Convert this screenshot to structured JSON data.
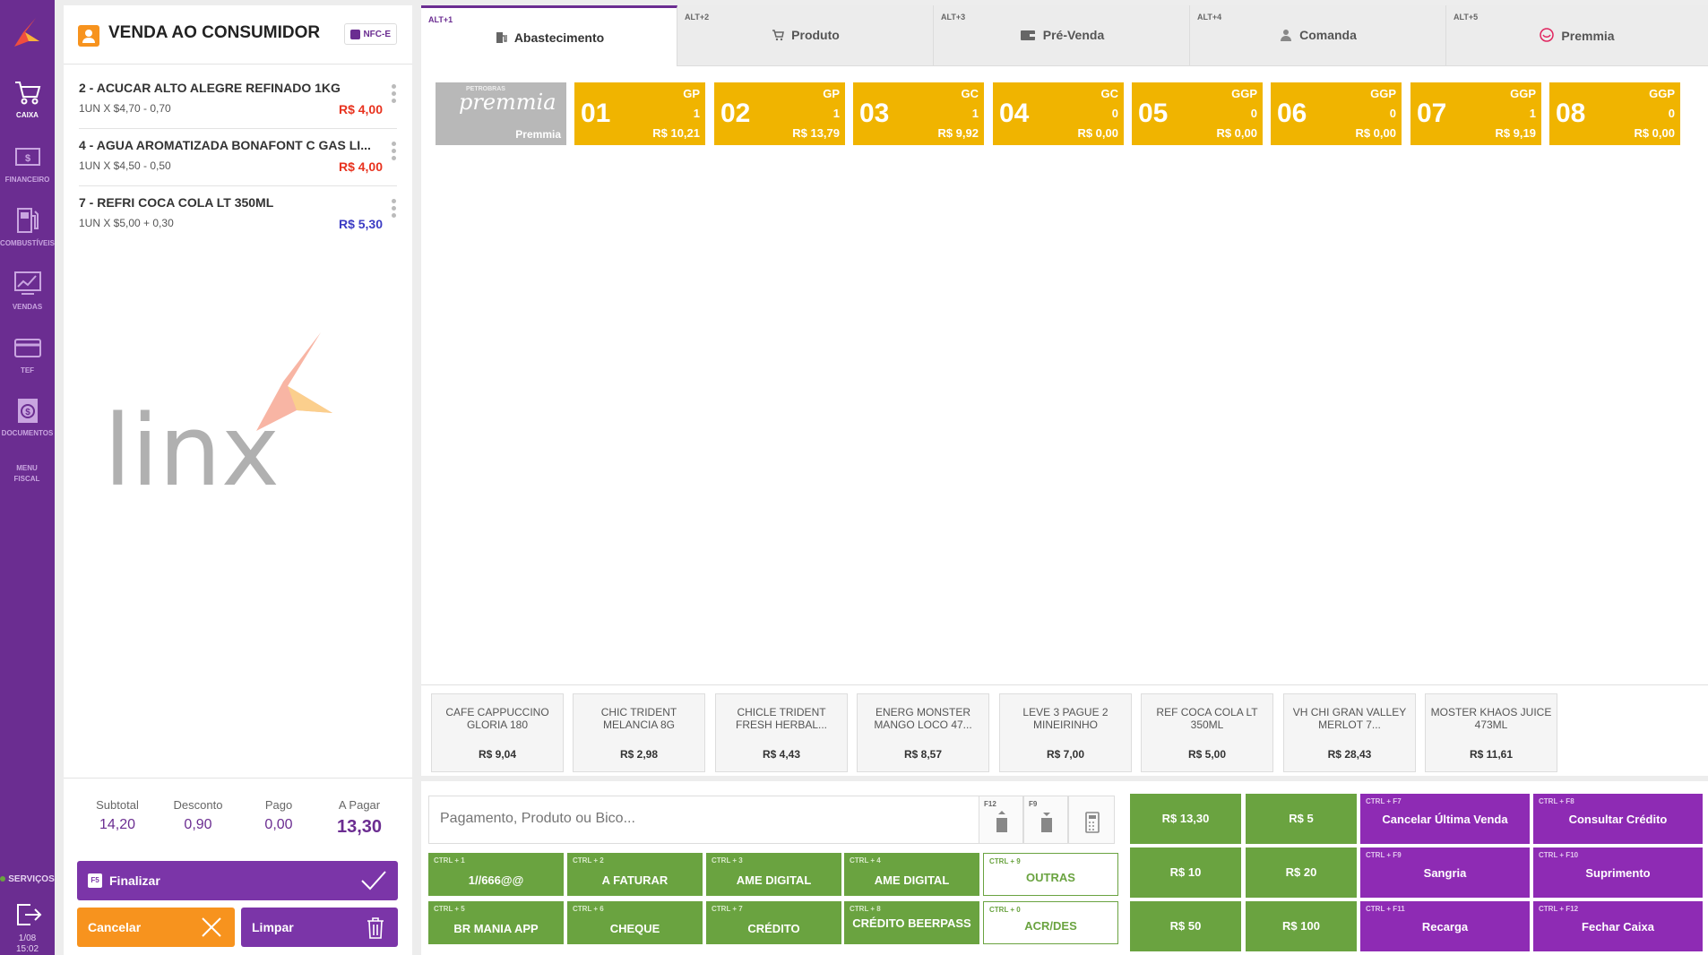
{
  "nav": {
    "items": [
      {
        "label": "CAIXA",
        "icon": "cart-icon"
      },
      {
        "label": "FINANCEIRO",
        "icon": "money-icon"
      },
      {
        "label": "COMBUSTÍVEIS",
        "icon": "fuel-pump-icon"
      },
      {
        "label": "VENDAS",
        "icon": "chart-line-icon"
      },
      {
        "label": "TEF",
        "icon": "credit-card-icon"
      },
      {
        "label": "DOCUMENTOS",
        "icon": "document-dollar-icon"
      },
      {
        "label": "MENU FISCAL",
        "icon": ""
      }
    ],
    "services_label": "SERVIÇOS",
    "date": "1/08",
    "time": "15:02"
  },
  "sale": {
    "title": "VENDA AO CONSUMIDOR",
    "doc_type": "NFC-E",
    "items": [
      {
        "name": "2 - ACUCAR ALTO ALEGRE REFINADO 1KG",
        "detail": "1UN X $4,70 - 0,70",
        "price": "R$ 4,00",
        "price_color": "#e8321e"
      },
      {
        "name": "4 - AGUA AROMATIZADA BONAFONT C GAS LI...",
        "detail": "1UN X $4,50 - 0,50",
        "price": "R$ 4,00",
        "price_color": "#e8321e"
      },
      {
        "name": "7 - REFRI COCA COLA LT 350ML",
        "detail": "1UN X $5,00 + 0,30",
        "price": "R$ 5,30",
        "price_color": "#3b3bc4"
      }
    ],
    "watermark": "linx",
    "totals": {
      "subtotal_label": "Subtotal",
      "subtotal": "14,20",
      "discount_label": "Desconto",
      "discount": "0,90",
      "paid_label": "Pago",
      "paid": "0,00",
      "due_label": "A Pagar",
      "due": "13,30"
    },
    "finalize_key": "F5",
    "finalize_label": "Finalizar",
    "cancel_label": "Cancelar",
    "clear_label": "Limpar"
  },
  "tabs": [
    {
      "shortcut": "ALT+1",
      "label": "Abastecimento",
      "icon": "fuel-icon",
      "active": true
    },
    {
      "shortcut": "ALT+2",
      "label": "Produto",
      "icon": "cart-icon"
    },
    {
      "shortcut": "ALT+3",
      "label": "Pré-Venda",
      "icon": "wallet-icon"
    },
    {
      "shortcut": "ALT+4",
      "label": "Comanda",
      "icon": "person-icon"
    },
    {
      "shortcut": "ALT+5",
      "label": "Premmia",
      "icon": "premmia-icon"
    }
  ],
  "premmia_card": {
    "brand_small": "PETROBRAS",
    "brand": "premmia",
    "label": "Premmia"
  },
  "pumps": [
    {
      "num": "01",
      "fuel": "GP",
      "qty": "1",
      "value": "R$ 10,21"
    },
    {
      "num": "02",
      "fuel": "GP",
      "qty": "1",
      "value": "R$ 13,79"
    },
    {
      "num": "03",
      "fuel": "GC",
      "qty": "1",
      "value": "R$ 9,92"
    },
    {
      "num": "04",
      "fuel": "GC",
      "qty": "0",
      "value": "R$ 0,00"
    },
    {
      "num": "05",
      "fuel": "GGP",
      "qty": "0",
      "value": "R$ 0,00"
    },
    {
      "num": "06",
      "fuel": "GGP",
      "qty": "0",
      "value": "R$ 0,00"
    },
    {
      "num": "07",
      "fuel": "GGP",
      "qty": "1",
      "value": "R$ 9,19"
    },
    {
      "num": "08",
      "fuel": "GGP",
      "qty": "0",
      "value": "R$ 0,00"
    }
  ],
  "quick_products": [
    {
      "name": "CAFE CAPPUCCINO GLORIA 180",
      "price": "R$ 9,04"
    },
    {
      "name": "CHIC TRIDENT MELANCIA 8G",
      "price": "R$ 2,98"
    },
    {
      "name": "CHICLE TRIDENT FRESH HERBAL...",
      "price": "R$ 4,43"
    },
    {
      "name": "ENERG MONSTER MANGO LOCO 47...",
      "price": "R$ 8,57"
    },
    {
      "name": "LEVE 3 PAGUE 2 MINEIRINHO",
      "price": "R$ 7,00"
    },
    {
      "name": "REF COCA COLA LT 350ML",
      "price": "R$ 5,00"
    },
    {
      "name": "VH CHI GRAN VALLEY MERLOT 7...",
      "price": "R$ 28,43"
    },
    {
      "name": "MOSTER KHAOS JUICE 473ML",
      "price": "R$ 11,61"
    }
  ],
  "payment": {
    "placeholder": "Pagamento, Produto ou Bico...",
    "icon_keys": [
      "F12",
      "F9",
      ""
    ],
    "methods": [
      {
        "key": "CTRL + 1",
        "label": "1//666@@"
      },
      {
        "key": "CTRL + 2",
        "label": "A FATURAR"
      },
      {
        "key": "CTRL + 3",
        "label": "AME DIGITAL"
      },
      {
        "key": "CTRL + 4",
        "label": "AME DIGITAL"
      },
      {
        "key": "CTRL + 9",
        "label": "OUTRAS",
        "outline": true
      },
      {
        "key": "CTRL + 5",
        "label": "BR MANIA APP"
      },
      {
        "key": "CTRL + 6",
        "label": "CHEQUE"
      },
      {
        "key": "CTRL + 7",
        "label": "CRÉDITO"
      },
      {
        "key": "CTRL + 8",
        "label": "CRÉDITO BEERPASS"
      },
      {
        "key": "CTRL + 0",
        "label": "ACR/DES",
        "outline": true
      }
    ],
    "quick_values": [
      "R$ 13,30",
      "R$ 5",
      "R$ 10",
      "R$ 20",
      "R$ 50",
      "R$ 100"
    ],
    "actions": [
      {
        "key": "CTRL + F7",
        "label": "Cancelar Última Venda"
      },
      {
        "key": "CTRL + F8",
        "label": "Consultar Crédito"
      },
      {
        "key": "CTRL + F9",
        "label": "Sangria"
      },
      {
        "key": "CTRL + F10",
        "label": "Suprimento"
      },
      {
        "key": "CTRL + F11",
        "label": "Recarga"
      },
      {
        "key": "CTRL + F12",
        "label": "Fechar Caixa"
      }
    ]
  },
  "colors": {
    "purple": "#6b2d91",
    "orange": "#f7931e",
    "pump_yellow": "#f0b400",
    "green": "#6aa340",
    "action_purple": "#8e2bb4"
  }
}
